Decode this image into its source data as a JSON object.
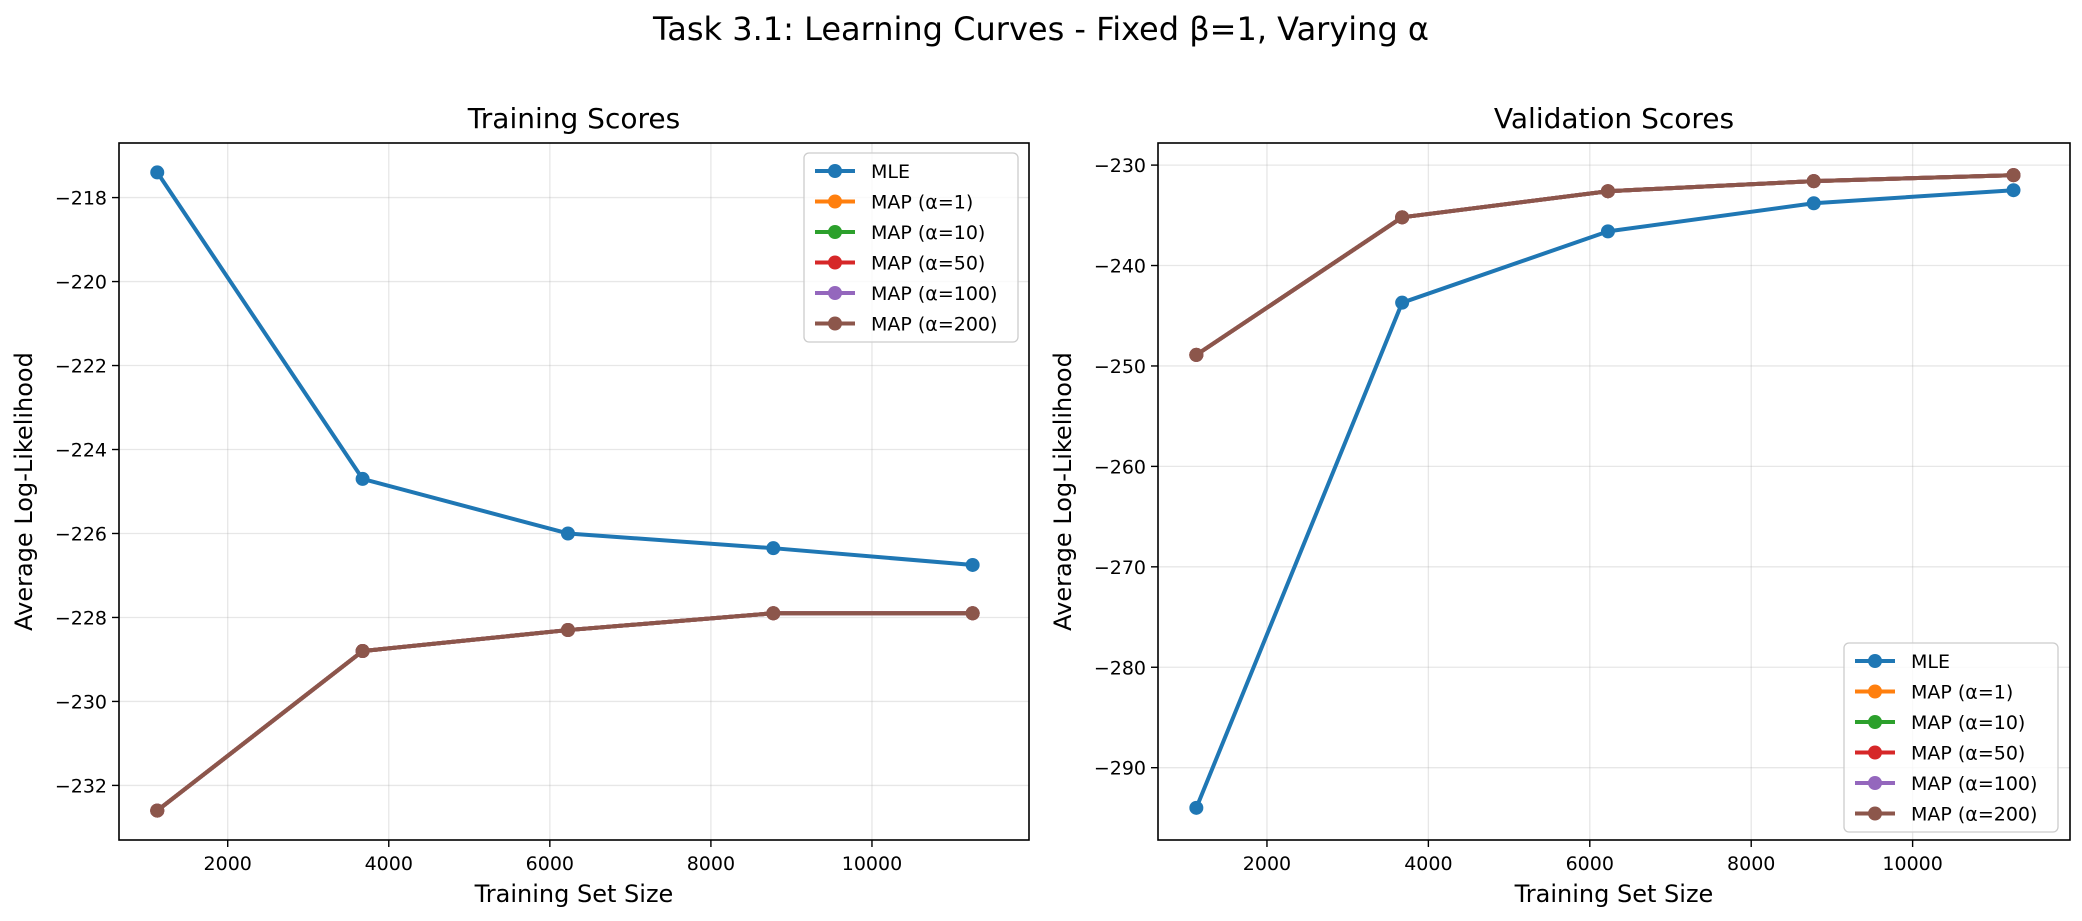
{
  "figure": {
    "suptitle": "Task 3.1: Learning Curves - Fixed β=1, Varying α"
  },
  "chart_data": [
    {
      "type": "line",
      "title": "Training Scores",
      "xlabel": "Training Set Size",
      "ylabel": "Average Log-Likelihood",
      "xlim": [
        650,
        11950
      ],
      "ylim": [
        -233.3,
        -216.7
      ],
      "xticks": [
        2000,
        4000,
        6000,
        8000,
        10000
      ],
      "yticks": [
        -232,
        -230,
        -228,
        -226,
        -224,
        -222,
        -220,
        -218
      ],
      "grid": true,
      "legend_position": "upper right",
      "x": [
        1125,
        3675,
        6225,
        8775,
        11250
      ],
      "series": [
        {
          "name": "MLE",
          "color": "#1f77b4",
          "values": [
            -217.4,
            -224.7,
            -226.0,
            -226.35,
            -226.75
          ]
        },
        {
          "name": "MAP (α=1)",
          "color": "#ff7f0e",
          "values": [
            -232.6,
            -228.8,
            -228.3,
            -227.9,
            -227.9
          ]
        },
        {
          "name": "MAP (α=10)",
          "color": "#2ca02c",
          "values": [
            -232.6,
            -228.8,
            -228.3,
            -227.9,
            -227.9
          ]
        },
        {
          "name": "MAP (α=50)",
          "color": "#d62728",
          "values": [
            -232.6,
            -228.8,
            -228.3,
            -227.9,
            -227.9
          ]
        },
        {
          "name": "MAP (α=100)",
          "color": "#9467bd",
          "values": [
            -232.6,
            -228.8,
            -228.3,
            -227.9,
            -227.9
          ]
        },
        {
          "name": "MAP (α=200)",
          "color": "#8c564b",
          "values": [
            -232.6,
            -228.8,
            -228.3,
            -227.9,
            -227.9
          ]
        }
      ]
    },
    {
      "type": "line",
      "title": "Validation Scores",
      "xlabel": "Training Set Size",
      "ylabel": "Average Log-Likelihood",
      "xlim": [
        650,
        11950
      ],
      "ylim": [
        -297.2,
        -227.8
      ],
      "xticks": [
        2000,
        4000,
        6000,
        8000,
        10000
      ],
      "yticks": [
        -290,
        -280,
        -270,
        -260,
        -250,
        -240,
        -230
      ],
      "grid": true,
      "legend_position": "lower right",
      "x": [
        1125,
        3675,
        6225,
        8775,
        11250
      ],
      "series": [
        {
          "name": "MLE",
          "color": "#1f77b4",
          "values": [
            -294.0,
            -243.7,
            -236.6,
            -233.8,
            -232.5
          ]
        },
        {
          "name": "MAP (α=1)",
          "color": "#ff7f0e",
          "values": [
            -248.9,
            -235.2,
            -232.6,
            -231.6,
            -231.0
          ]
        },
        {
          "name": "MAP (α=10)",
          "color": "#2ca02c",
          "values": [
            -248.9,
            -235.2,
            -232.6,
            -231.6,
            -231.0
          ]
        },
        {
          "name": "MAP (α=50)",
          "color": "#d62728",
          "values": [
            -248.9,
            -235.2,
            -232.6,
            -231.6,
            -231.0
          ]
        },
        {
          "name": "MAP (α=100)",
          "color": "#9467bd",
          "values": [
            -248.9,
            -235.2,
            -232.6,
            -231.6,
            -231.0
          ]
        },
        {
          "name": "MAP (α=200)",
          "color": "#8c564b",
          "values": [
            -248.9,
            -235.2,
            -232.6,
            -231.6,
            -231.0
          ]
        }
      ]
    }
  ]
}
